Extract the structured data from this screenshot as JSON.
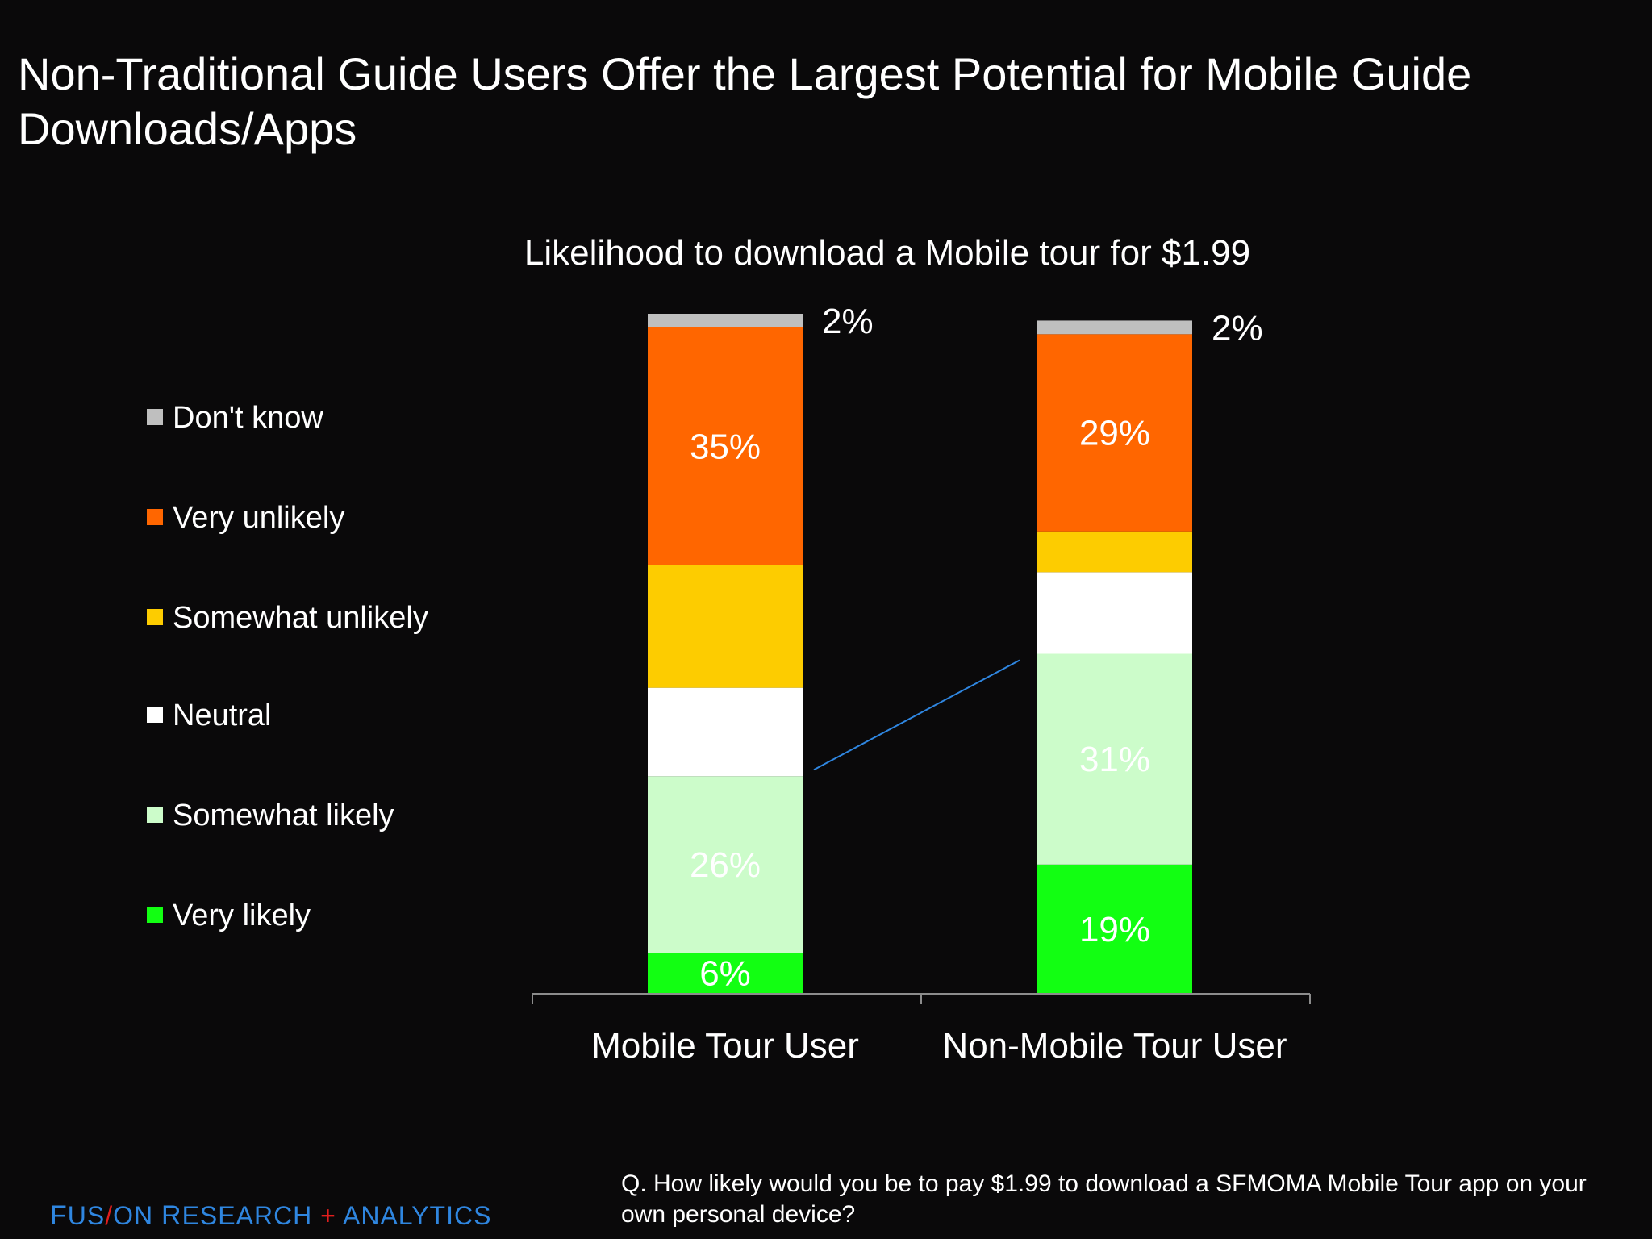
{
  "page": {
    "title": "Non-Traditional Guide Users Offer the Largest Potential for Mobile Guide Downloads/Apps"
  },
  "chart_data": {
    "type": "bar",
    "stacked": true,
    "title": "Likelihood to download a Mobile tour for $1.99",
    "categories": [
      "Mobile Tour User",
      "Non-Mobile Tour User"
    ],
    "ylim": [
      0,
      100
    ],
    "grid": false,
    "legend_position": "left",
    "series": [
      {
        "name": "Very likely",
        "color": "#12ff12",
        "values": [
          6,
          19
        ],
        "labels": [
          "6%",
          "19%"
        ],
        "label_color": "#ffffff"
      },
      {
        "name": "Somewhat likely",
        "color": "#ccfcca",
        "values": [
          26,
          31
        ],
        "labels": [
          "26%",
          "31%"
        ],
        "label_color": "#ffffff"
      },
      {
        "name": "Neutral",
        "color": "#ffffff",
        "values": [
          13,
          12
        ],
        "labels": [
          "",
          ""
        ],
        "label_color": "#ffffff"
      },
      {
        "name": "Somewhat unlikely",
        "color": "#fdcc00",
        "values": [
          18,
          6
        ],
        "labels": [
          "",
          ""
        ],
        "label_color": "#ffffff"
      },
      {
        "name": "Very unlikely",
        "color": "#ff6600",
        "values": [
          35,
          29
        ],
        "labels": [
          "35%",
          "29%"
        ],
        "label_color": "#ffffff"
      },
      {
        "name": "Don't know",
        "color": "#bfbfbf",
        "values": [
          2,
          2
        ],
        "labels": [
          "2%",
          "2%"
        ],
        "label_color": "#ffffff",
        "label_outside": true
      }
    ],
    "legend_order": [
      "Don't know",
      "Very unlikely",
      "Somewhat unlikely",
      "Neutral",
      "Somewhat likely",
      "Very likely"
    ],
    "connector_color": "#2f86e0"
  },
  "footer": {
    "logo": {
      "part1_big": "F",
      "part1_small": "US",
      "slash": "/",
      "part2_small": "ON ",
      "part3_big": "R",
      "part3_small": "ESEARCH",
      "plus": "+",
      "part4": "ANALYTICS"
    },
    "logo_colors": {
      "text": "#2f86e0",
      "accent": "#e11d1d"
    },
    "question": "Q. How likely would you be to pay $1.99 to download a SFMOMA Mobile Tour app on your own personal device?"
  }
}
